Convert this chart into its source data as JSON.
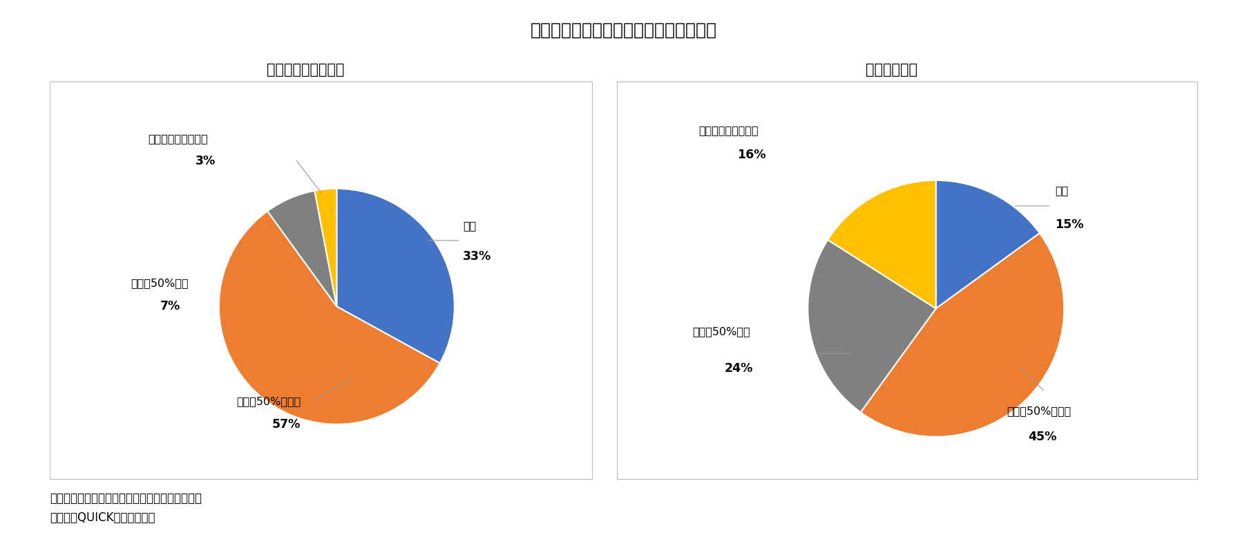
{
  "title": "》図表３「《今回開示》は内訳も厳しい",
  "title_fontsize": 18,
  "subtitle_left": "＜期初に開示済み＞",
  "subtitle_right": "＜今回開示＞",
  "subtitle_fontsize": 15,
  "note_line1": "（注）図表２と同じ９ﾙ８社（経常利益ベース）",
  "note_line2": "（資料）QUICKより筆者作成",
  "note_fontsize": 12,
  "chart1": {
    "labels": [
      "増益",
      "減益（50%以内）",
      "減益（50%超）",
      "赤字転落・赤字拡大"
    ],
    "values": [
      33,
      57,
      7,
      3
    ],
    "colors": [
      "#4472C4",
      "#ED7D31",
      "#808080",
      "#FFC000"
    ],
    "startangle": 90
  },
  "chart2": {
    "labels": [
      "増益",
      "減益（50%以内）",
      "減益（50%超）",
      "赤字転落・赤字拡大"
    ],
    "values": [
      15,
      45,
      24,
      16
    ],
    "colors": [
      "#4472C4",
      "#ED7D31",
      "#808080",
      "#FFC000"
    ],
    "startangle": 90
  },
  "background_color": "#FFFFFF",
  "text_color": "#000000",
  "label_fontsize": 11.5,
  "pct_fontsize": 12.5
}
